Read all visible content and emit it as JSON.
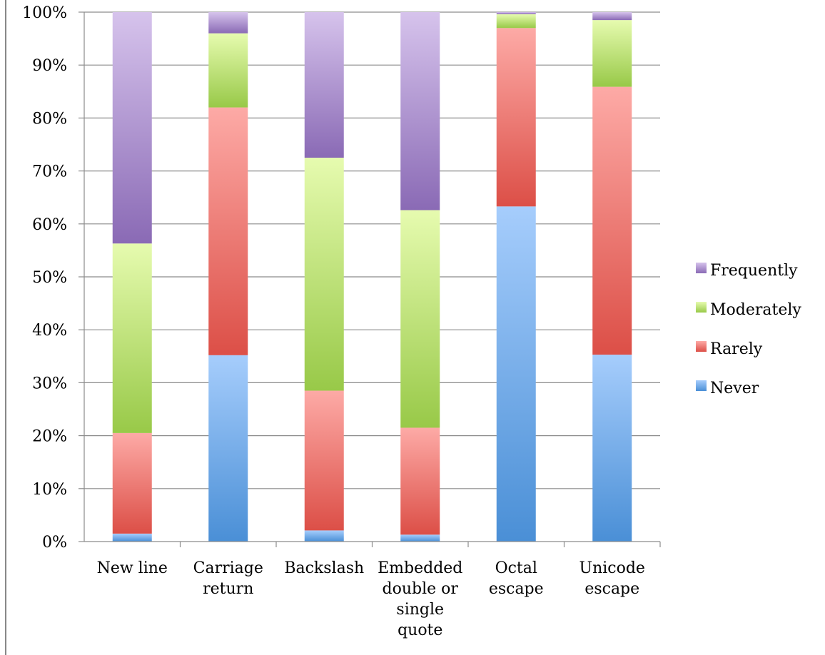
{
  "chart_data": {
    "type": "bar",
    "stacked": true,
    "percent_stacked": true,
    "categories": [
      [
        "New line"
      ],
      [
        "Carriage",
        "return"
      ],
      [
        "Backslash"
      ],
      [
        "Embedded",
        "double or",
        "single",
        "quote"
      ],
      [
        "Octal",
        "escape"
      ],
      [
        "Unicode",
        "escape"
      ]
    ],
    "series": [
      {
        "name": "Never",
        "values": [
          1.5,
          35.2,
          2.1,
          1.3,
          63.3,
          35.3
        ]
      },
      {
        "name": "Rarely",
        "values": [
          19.0,
          46.8,
          26.4,
          20.2,
          33.7,
          50.6
        ]
      },
      {
        "name": "Moderately",
        "values": [
          35.8,
          14.0,
          44.0,
          41.1,
          2.6,
          12.6
        ]
      },
      {
        "name": "Frequently",
        "values": [
          43.7,
          4.0,
          27.5,
          37.4,
          0.4,
          1.5
        ]
      }
    ],
    "yticks": [
      "0%",
      "10%",
      "20%",
      "30%",
      "40%",
      "50%",
      "60%",
      "70%",
      "80%",
      "90%",
      "100%"
    ],
    "ylim": [
      0,
      100
    ],
    "grid": true,
    "legend": "right",
    "colors": {
      "Never": [
        "#a6cdfc",
        "#4a8fd6"
      ],
      "Rarely": [
        "#fdaaa6",
        "#dc4f47"
      ],
      "Moderately": [
        "#e6fbaf",
        "#98c948"
      ],
      "Frequently": [
        "#d6c3ec",
        "#8a6ab5"
      ]
    }
  }
}
